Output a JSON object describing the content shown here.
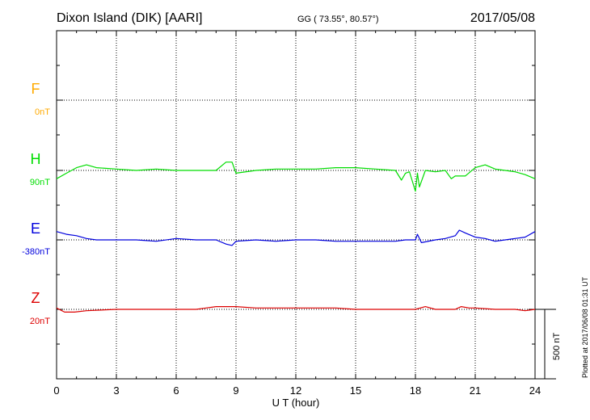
{
  "header": {
    "station": "Dixon Island (DIK)  [AARI]",
    "coords": "GG ( 73.55°,  80.57°)",
    "date": "2017/05/08"
  },
  "side_note": "Plotted at 2017/06/08 01:31  UT",
  "scale_label": "500 nT",
  "chart_data": {
    "type": "line",
    "xlabel": "U T (hour)",
    "xlim": [
      0,
      24
    ],
    "xticks": [
      "0",
      "3",
      "6",
      "9",
      "12",
      "15",
      "18",
      "21",
      "24"
    ],
    "y_unit": "nT",
    "scale_bar_nT": 500,
    "grid": true,
    "series": [
      {
        "name": "F",
        "baseline": "0nT",
        "color": "#ffaa00",
        "x": [],
        "values": []
      },
      {
        "name": "H",
        "baseline": "90nT",
        "color": "#00dd00",
        "x": [
          0,
          0.5,
          1,
          1.5,
          2,
          3,
          4,
          5,
          6,
          7,
          8,
          8.5,
          8.8,
          9,
          10,
          11,
          12,
          13,
          14,
          15,
          16,
          17,
          17.3,
          17.5,
          17.7,
          18,
          18.1,
          18.2,
          18.5,
          19,
          19.5,
          19.8,
          20,
          20.5,
          21,
          21.5,
          22,
          22.5,
          23,
          23.5,
          24
        ],
        "values": [
          -60,
          -20,
          20,
          40,
          20,
          10,
          0,
          10,
          0,
          0,
          0,
          60,
          60,
          -20,
          0,
          10,
          10,
          10,
          20,
          20,
          10,
          0,
          -70,
          -20,
          -10,
          -150,
          -20,
          -120,
          0,
          -10,
          0,
          -60,
          -40,
          -40,
          20,
          40,
          10,
          0,
          -10,
          -30,
          -60
        ]
      },
      {
        "name": "E",
        "baseline": "-380nT",
        "color": "#0000dd",
        "x": [
          0,
          0.5,
          1,
          1.5,
          2,
          3,
          4,
          5,
          6,
          7,
          8,
          8.5,
          8.8,
          9,
          10,
          11,
          12,
          13,
          14,
          15,
          16,
          17,
          17.5,
          18,
          18.1,
          18.3,
          19,
          19.5,
          20,
          20.2,
          20.5,
          21,
          21.5,
          22,
          22.5,
          23,
          23.5,
          24
        ],
        "values": [
          60,
          40,
          30,
          10,
          0,
          0,
          0,
          -10,
          10,
          0,
          0,
          -30,
          -40,
          -10,
          0,
          -10,
          0,
          0,
          -10,
          -10,
          -10,
          -10,
          0,
          0,
          40,
          -20,
          0,
          10,
          30,
          70,
          50,
          20,
          10,
          -10,
          0,
          10,
          20,
          60
        ]
      },
      {
        "name": "Z",
        "baseline": "20nT",
        "color": "#dd0000",
        "x": [
          0,
          0.4,
          0.9,
          1.5,
          3,
          5,
          7,
          8,
          9,
          10,
          12,
          14,
          15,
          17,
          18,
          18.5,
          19,
          20,
          20.3,
          20.7,
          21,
          22,
          23,
          23.5,
          24
        ],
        "values": [
          10,
          -20,
          -20,
          -10,
          0,
          0,
          0,
          20,
          20,
          10,
          10,
          10,
          0,
          0,
          0,
          20,
          0,
          0,
          20,
          10,
          10,
          0,
          0,
          -10,
          0
        ]
      }
    ]
  }
}
